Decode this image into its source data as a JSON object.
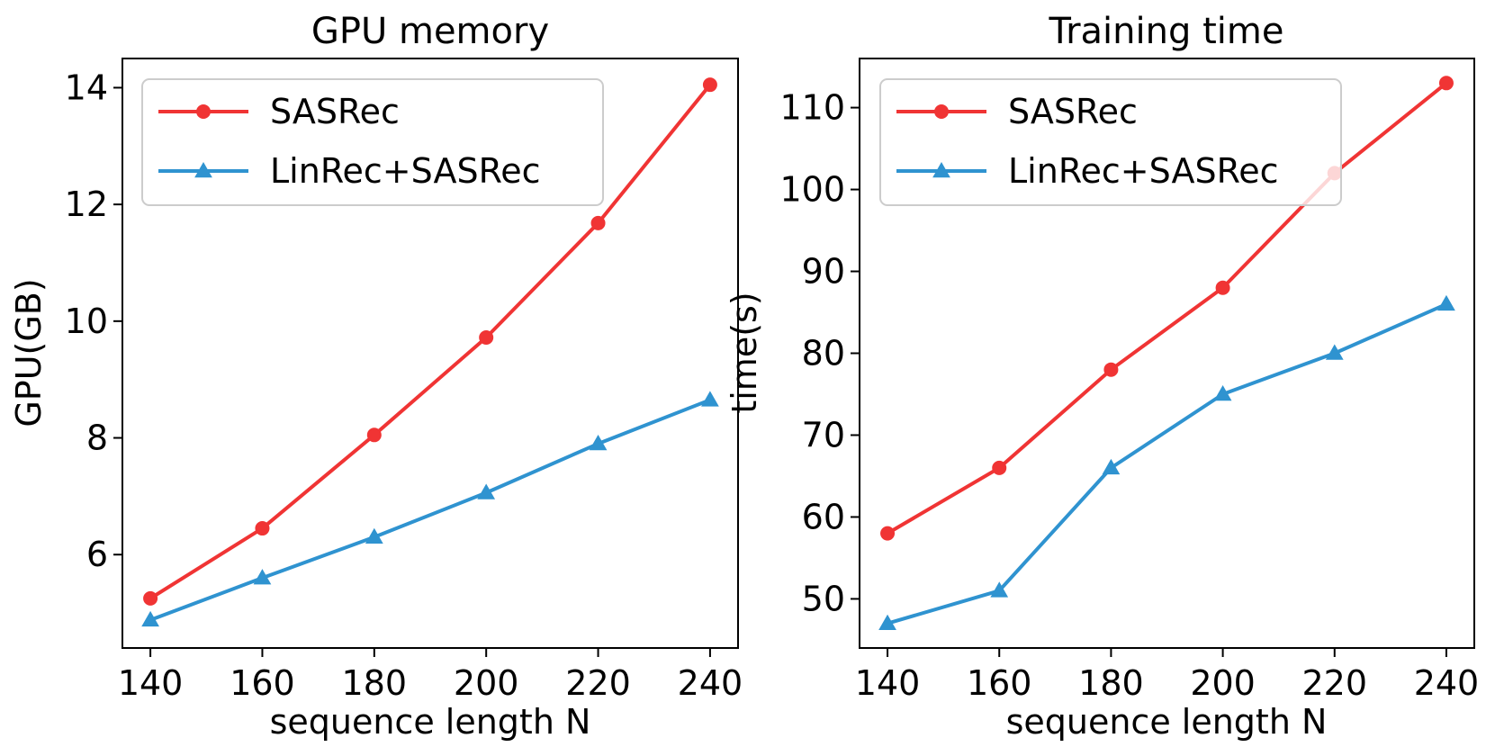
{
  "chart_data": [
    {
      "type": "line",
      "title": "GPU memory",
      "xlabel": "sequence length N",
      "ylabel": "GPU(GB)",
      "x": [
        140,
        160,
        180,
        200,
        220,
        240
      ],
      "xlim": [
        135,
        245
      ],
      "ylim": [
        4.4,
        14.5
      ],
      "xticks": [
        140,
        160,
        180,
        200,
        220,
        240
      ],
      "yticks": [
        6,
        8,
        10,
        12,
        14
      ],
      "legend_position": "upper-left",
      "series": [
        {
          "name": "SASRec",
          "color": "#f03434",
          "marker": "circle",
          "values": [
            5.25,
            6.45,
            8.05,
            9.72,
            11.68,
            14.05
          ]
        },
        {
          "name": "LinRec+SASRec",
          "color": "#2f93d0",
          "marker": "triangle",
          "values": [
            4.88,
            5.6,
            6.3,
            7.06,
            7.9,
            8.65
          ]
        }
      ]
    },
    {
      "type": "line",
      "title": "Training time",
      "xlabel": "sequence length N",
      "ylabel": "time(s)",
      "x": [
        140,
        160,
        180,
        200,
        220,
        240
      ],
      "xlim": [
        135,
        245
      ],
      "ylim": [
        44,
        116
      ],
      "xticks": [
        140,
        160,
        180,
        200,
        220,
        240
      ],
      "yticks": [
        50,
        60,
        70,
        80,
        90,
        100,
        110
      ],
      "legend_position": "upper-left",
      "series": [
        {
          "name": "SASRec",
          "color": "#f03434",
          "marker": "circle",
          "values": [
            58,
            66,
            78,
            88,
            102,
            113
          ]
        },
        {
          "name": "LinRec+SASRec",
          "color": "#2f93d0",
          "marker": "triangle",
          "values": [
            47,
            51,
            66,
            75,
            80,
            86
          ]
        }
      ]
    }
  ]
}
